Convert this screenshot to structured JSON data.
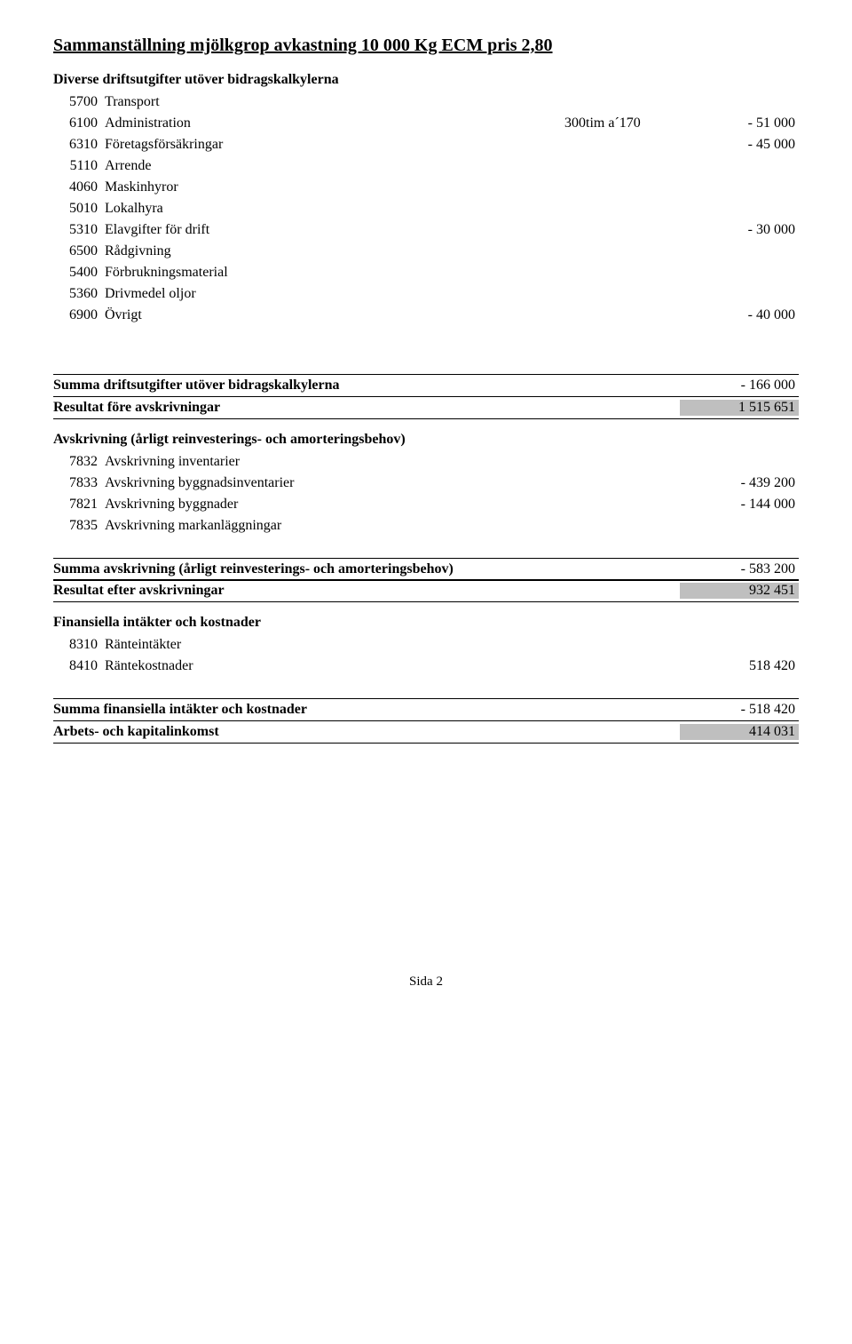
{
  "title": "Sammanställning mjölkgrop avkastning 10 000 Kg ECM pris 2,80",
  "section1": {
    "heading": "Diverse driftsutgifter utöver bidragskalkylerna",
    "rows": [
      {
        "code": "5700",
        "label": "Transport",
        "mid": "",
        "val": ""
      },
      {
        "code": "6100",
        "label": "Administration",
        "mid": "300tim a´170",
        "val": "- 51 000"
      },
      {
        "code": "6310",
        "label": "Företagsförsäkringar",
        "mid": "",
        "val": "- 45 000"
      },
      {
        "code": "5110",
        "label": "Arrende",
        "mid": "",
        "val": ""
      },
      {
        "code": "4060",
        "label": "Maskinhyror",
        "mid": "",
        "val": ""
      },
      {
        "code": "5010",
        "label": "Lokalhyra",
        "mid": "",
        "val": ""
      },
      {
        "code": "5310",
        "label": "Elavgifter för drift",
        "mid": "",
        "val": "- 30 000"
      },
      {
        "code": "6500",
        "label": "Rådgivning",
        "mid": "",
        "val": ""
      },
      {
        "code": "5400",
        "label": "Förbrukningsmaterial",
        "mid": "",
        "val": ""
      },
      {
        "code": "5360",
        "label": "Drivmedel oljor",
        "mid": "",
        "val": ""
      },
      {
        "code": "6900",
        "label": "Övrigt",
        "mid": "",
        "val": "- 40 000"
      }
    ]
  },
  "summary1": [
    {
      "label": "Summa driftsutgifter utöver bidragskalkylerna",
      "val": "- 166 000",
      "shaded": false
    },
    {
      "label": "Resultat före avskrivningar",
      "val": "1 515 651",
      "shaded": true
    }
  ],
  "section2": {
    "heading": "Avskrivning (årligt reinvesterings- och amorteringsbehov)",
    "rows": [
      {
        "code": "7832",
        "label": "Avskrivning inventarier",
        "val": ""
      },
      {
        "code": "7833",
        "label": "Avskrivning byggnadsinventarier",
        "val": "- 439 200"
      },
      {
        "code": "7821",
        "label": "Avskrivning byggnader",
        "val": "- 144 000"
      },
      {
        "code": "7835",
        "label": "Avskrivning markanläggningar",
        "val": ""
      }
    ]
  },
  "summary2": [
    {
      "label": "Summa avskrivning (årligt reinvesterings- och amorteringsbehov)",
      "val": "- 583 200",
      "shaded": false
    },
    {
      "label": "Resultat efter avskrivningar",
      "val": "932 451",
      "shaded": true
    }
  ],
  "section3": {
    "heading": "Finansiella intäkter och kostnader",
    "rows": [
      {
        "code": "8310",
        "label": "Ränteintäkter",
        "val": ""
      },
      {
        "code": "8410",
        "label": "Räntekostnader",
        "val": "518 420"
      }
    ]
  },
  "summary3": [
    {
      "label": "Summa finansiella intäkter och kostnader",
      "val": "- 518 420",
      "shaded": false
    },
    {
      "label": "Arbets- och kapitalinkomst",
      "val": "414 031",
      "shaded": true
    }
  ],
  "footer": "Sida 2",
  "colors": {
    "shaded_bg": "#bfbfbf",
    "text": "#000000",
    "background": "#ffffff"
  }
}
